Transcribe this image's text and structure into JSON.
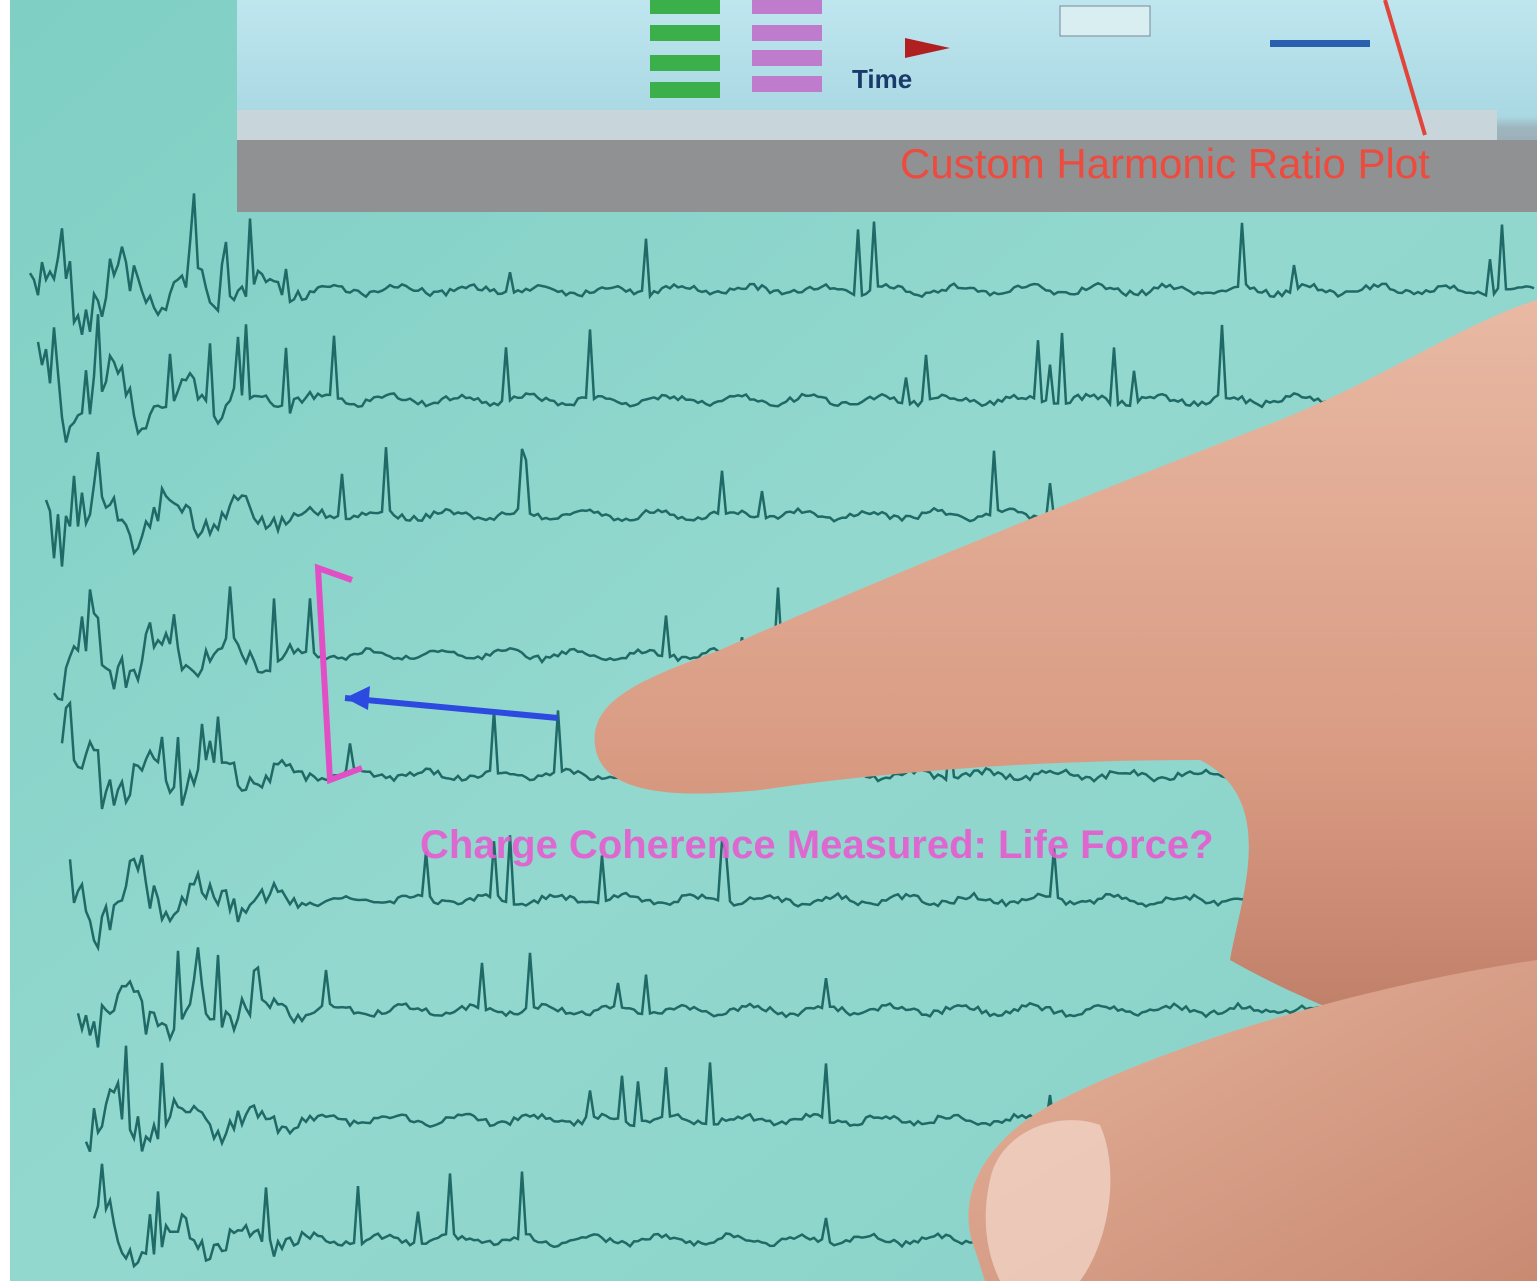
{
  "screen": {
    "axis_label": "Time"
  },
  "annotations": {
    "top_label": "Custom Harmonic Ratio Plot",
    "bottom_label": "Charge Coherence Measured: Life Force?"
  }
}
